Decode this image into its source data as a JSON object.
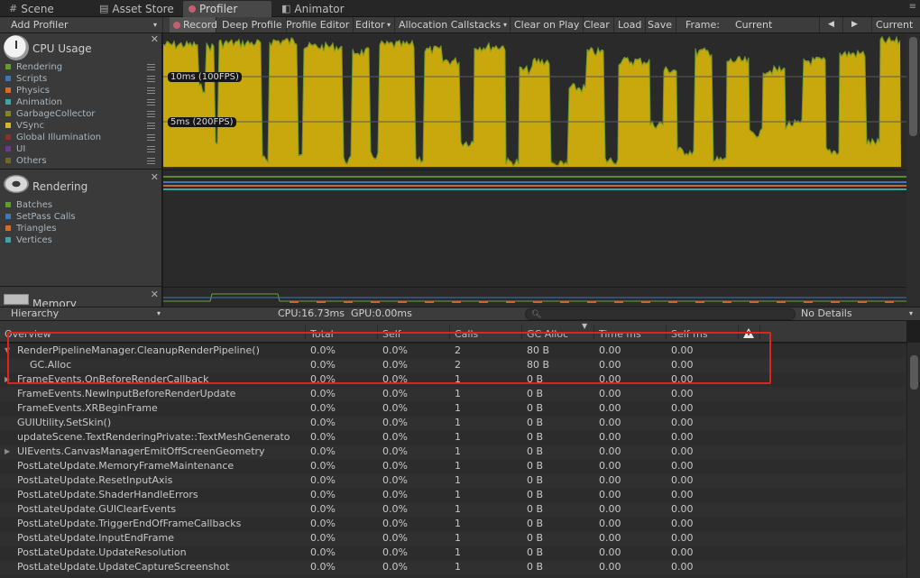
{
  "tabs": [
    {
      "label": "Scene",
      "icon": "scene-icon"
    },
    {
      "label": "Asset Store",
      "icon": "asset-store-icon"
    },
    {
      "label": "Profiler",
      "icon": "profiler-icon"
    },
    {
      "label": "Animator",
      "icon": "animator-icon"
    }
  ],
  "toolbar": {
    "add_profiler": "Add Profiler",
    "record": "Record",
    "deep_profile": "Deep Profile",
    "profile_editor": "Profile Editor",
    "editor": "Editor",
    "allocation_callstacks": "Allocation Callstacks",
    "clear_on_play": "Clear on Play",
    "clear": "Clear",
    "load": "Load",
    "save": "Save",
    "frame_label": "Frame:",
    "frame_value": "Current",
    "prev_icon": "previous-frame-icon",
    "next_icon": "next-frame-icon",
    "current": "Current"
  },
  "modules": {
    "cpu": {
      "title": "CPU Usage",
      "icon": "stopwatch-icon",
      "legend": [
        {
          "label": "Rendering",
          "color": "#5e9f2a"
        },
        {
          "label": "Scripts",
          "color": "#3d77b6"
        },
        {
          "label": "Physics",
          "color": "#d56c27"
        },
        {
          "label": "Animation",
          "color": "#3aa6a8"
        },
        {
          "label": "GarbageCollector",
          "color": "#858524"
        },
        {
          "label": "VSync",
          "color": "#d6b52b"
        },
        {
          "label": "Global Illumination",
          "color": "#8c2f2f"
        },
        {
          "label": "UI",
          "color": "#6b3a8f"
        },
        {
          "label": "Others",
          "color": "#6b6b24"
        }
      ]
    },
    "rendering": {
      "title": "Rendering",
      "icon": "torus-icon",
      "legend": [
        {
          "label": "Batches",
          "color": "#5e9f2a"
        },
        {
          "label": "SetPass Calls",
          "color": "#3d77b6"
        },
        {
          "label": "Triangles",
          "color": "#d56c27"
        },
        {
          "label": "Vertices",
          "color": "#3aa6a8"
        }
      ]
    },
    "memory": {
      "title": "Memory",
      "icon": "memory-chip-icon"
    }
  },
  "graph": {
    "line_10ms": "10ms (100FPS)",
    "line_5ms": "5ms (200FPS)",
    "fill_color": "#c9a80e",
    "bg_color": "#2a2a2a",
    "vsync_color": "#3a3a10"
  },
  "hierarchy_bar": {
    "view": "Hierarchy",
    "cpu_time": "CPU:16.73ms",
    "gpu_time": "GPU:0.00ms",
    "search_placeholder": "",
    "details": "No Details"
  },
  "columns": {
    "overview": "Overview",
    "total": "Total",
    "self": "Self",
    "calls": "Calls",
    "gc_alloc": "GC Alloc",
    "time_ms": "Time ms",
    "self_ms": "Self ms",
    "warnings_icon": "warning-icon"
  },
  "rows": [
    {
      "name": "RenderPipelineManager.CleanupRenderPipeline()",
      "expander": "▼",
      "indent": 0,
      "total": "0.0%",
      "self": "0.0%",
      "calls": "2",
      "gc": "80 B",
      "time": "0.00",
      "selfms": "0.00"
    },
    {
      "name": "GC.Alloc",
      "expander": "",
      "indent": 1,
      "total": "0.0%",
      "self": "0.0%",
      "calls": "2",
      "gc": "80 B",
      "time": "0.00",
      "selfms": "0.00"
    },
    {
      "name": "FrameEvents.OnBeforeRenderCallback",
      "expander": "▶",
      "indent": 0,
      "total": "0.0%",
      "self": "0.0%",
      "calls": "1",
      "gc": "0 B",
      "time": "0.00",
      "selfms": "0.00"
    },
    {
      "name": "FrameEvents.NewInputBeforeRenderUpdate",
      "expander": "",
      "indent": 0,
      "total": "0.0%",
      "self": "0.0%",
      "calls": "1",
      "gc": "0 B",
      "time": "0.00",
      "selfms": "0.00"
    },
    {
      "name": "FrameEvents.XRBeginFrame",
      "expander": "",
      "indent": 0,
      "total": "0.0%",
      "self": "0.0%",
      "calls": "1",
      "gc": "0 B",
      "time": "0.00",
      "selfms": "0.00"
    },
    {
      "name": "GUIUtility.SetSkin()",
      "expander": "",
      "indent": 0,
      "total": "0.0%",
      "self": "0.0%",
      "calls": "1",
      "gc": "0 B",
      "time": "0.00",
      "selfms": "0.00"
    },
    {
      "name": "updateScene.TextRenderingPrivate::TextMeshGenerato",
      "expander": "",
      "indent": 0,
      "total": "0.0%",
      "self": "0.0%",
      "calls": "1",
      "gc": "0 B",
      "time": "0.00",
      "selfms": "0.00"
    },
    {
      "name": "UIEvents.CanvasManagerEmitOffScreenGeometry",
      "expander": "▶",
      "indent": 0,
      "total": "0.0%",
      "self": "0.0%",
      "calls": "1",
      "gc": "0 B",
      "time": "0.00",
      "selfms": "0.00"
    },
    {
      "name": "PostLateUpdate.MemoryFrameMaintenance",
      "expander": "",
      "indent": 0,
      "total": "0.0%",
      "self": "0.0%",
      "calls": "1",
      "gc": "0 B",
      "time": "0.00",
      "selfms": "0.00"
    },
    {
      "name": "PostLateUpdate.ResetInputAxis",
      "expander": "",
      "indent": 0,
      "total": "0.0%",
      "self": "0.0%",
      "calls": "1",
      "gc": "0 B",
      "time": "0.00",
      "selfms": "0.00"
    },
    {
      "name": "PostLateUpdate.ShaderHandleErrors",
      "expander": "",
      "indent": 0,
      "total": "0.0%",
      "self": "0.0%",
      "calls": "1",
      "gc": "0 B",
      "time": "0.00",
      "selfms": "0.00"
    },
    {
      "name": "PostLateUpdate.GUIClearEvents",
      "expander": "",
      "indent": 0,
      "total": "0.0%",
      "self": "0.0%",
      "calls": "1",
      "gc": "0 B",
      "time": "0.00",
      "selfms": "0.00"
    },
    {
      "name": "PostLateUpdate.TriggerEndOfFrameCallbacks",
      "expander": "",
      "indent": 0,
      "total": "0.0%",
      "self": "0.0%",
      "calls": "1",
      "gc": "0 B",
      "time": "0.00",
      "selfms": "0.00"
    },
    {
      "name": "PostLateUpdate.InputEndFrame",
      "expander": "",
      "indent": 0,
      "total": "0.0%",
      "self": "0.0%",
      "calls": "1",
      "gc": "0 B",
      "time": "0.00",
      "selfms": "0.00"
    },
    {
      "name": "PostLateUpdate.UpdateResolution",
      "expander": "",
      "indent": 0,
      "total": "0.0%",
      "self": "0.0%",
      "calls": "1",
      "gc": "0 B",
      "time": "0.00",
      "selfms": "0.00"
    },
    {
      "name": "PostLateUpdate.UpdateCaptureScreenshot",
      "expander": "",
      "indent": 0,
      "total": "0.0%",
      "self": "0.0%",
      "calls": "1",
      "gc": "0 B",
      "time": "0.00",
      "selfms": "0.00"
    }
  ]
}
